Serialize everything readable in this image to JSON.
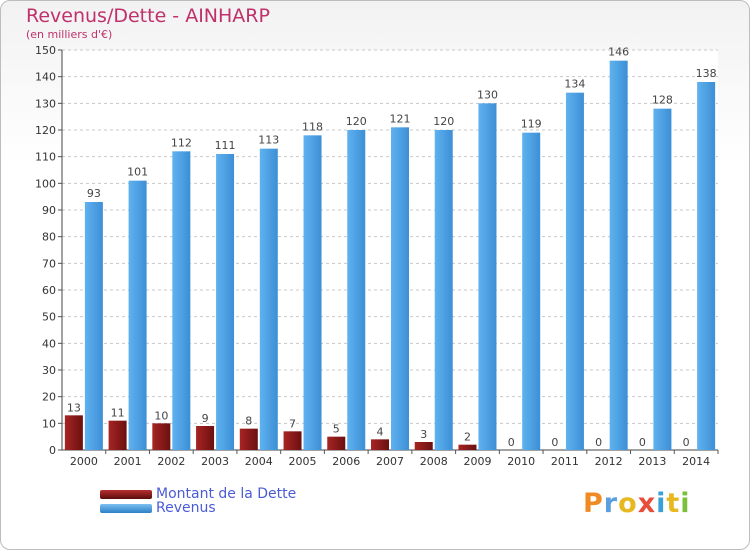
{
  "header": {
    "title": "Revenus/Dette - AINHARP",
    "subtitle": "(en milliers d'€)"
  },
  "legend": {
    "items": [
      {
        "label": "Montant de la Dette",
        "color": "#8b1a1a"
      },
      {
        "label": "Revenus",
        "color": "#4da3e6"
      }
    ]
  },
  "logo": {
    "letters": [
      "P",
      "r",
      "o",
      "x",
      "i",
      "t",
      "i"
    ],
    "colors": [
      "#f08a24",
      "#5aa0de",
      "#e8b820",
      "#e84d3c",
      "#3aa0d8",
      "#e8b820",
      "#7cbf3a"
    ]
  },
  "chart_data": {
    "type": "bar",
    "title": "Revenus/Dette - AINHARP",
    "subtitle": "(en milliers d'€)",
    "categories": [
      "2000",
      "2001",
      "2002",
      "2003",
      "2004",
      "2005",
      "2006",
      "2007",
      "2008",
      "2009",
      "2010",
      "2011",
      "2012",
      "2013",
      "2014"
    ],
    "series": [
      {
        "name": "Montant de la Dette",
        "color": "#8b1a1a",
        "values": [
          13,
          11,
          10,
          9,
          8,
          7,
          5,
          4,
          3,
          2,
          0,
          0,
          0,
          0,
          0
        ]
      },
      {
        "name": "Revenus",
        "color": "#4da3e6",
        "values": [
          93,
          101,
          112,
          111,
          113,
          118,
          120,
          121,
          120,
          130,
          119,
          134,
          146,
          128,
          138
        ]
      }
    ],
    "ylim": [
      0,
      150
    ],
    "yticks": [
      0,
      10,
      20,
      30,
      40,
      50,
      60,
      70,
      80,
      90,
      100,
      110,
      120,
      130,
      140,
      150
    ],
    "grid": true,
    "legend_position": "bottom-left"
  }
}
